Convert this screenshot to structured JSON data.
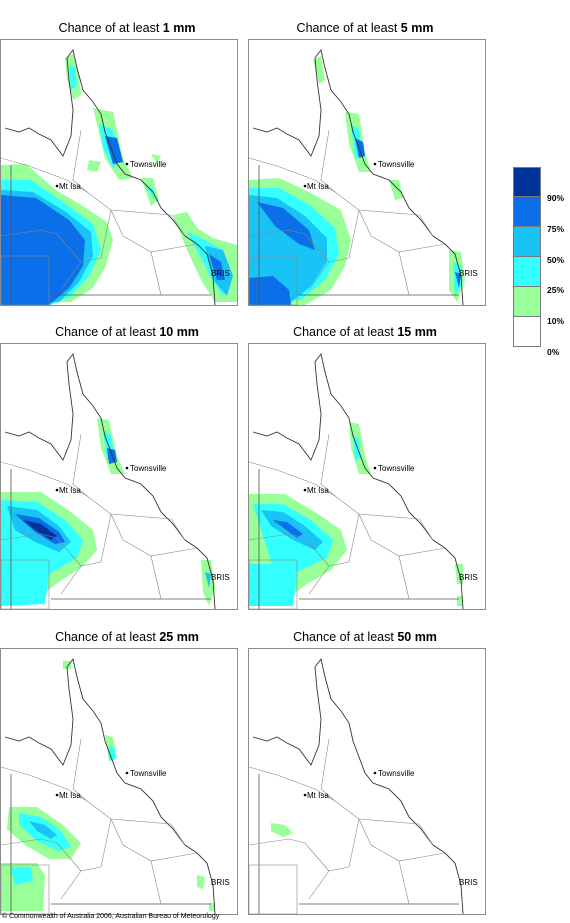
{
  "panels": [
    {
      "title_prefix": "Chance of at least ",
      "amount": "1 mm",
      "label_mtisa": "Mt Isa",
      "label_townsville": "Townsville",
      "label_bris": "BRIS"
    },
    {
      "title_prefix": "Chance of at least ",
      "amount": "5 mm",
      "label_mtisa": "Mt Isa",
      "label_townsville": "Townsville",
      "label_bris": "BRIS"
    },
    {
      "title_prefix": "Chance of at least ",
      "amount": "10 mm",
      "label_mtisa": "Mt Isa",
      "label_townsville": "Townsville",
      "label_bris": "BRIS"
    },
    {
      "title_prefix": "Chance of at least ",
      "amount": "15 mm",
      "label_mtisa": "Mt Isa",
      "label_townsville": "Townsville",
      "label_bris": "BRIS"
    },
    {
      "title_prefix": "Chance of at least ",
      "amount": "25 mm",
      "label_mtisa": "Mt Isa",
      "label_townsville": "Townsville",
      "label_bris": "BRIS"
    },
    {
      "title_prefix": "Chance of at least ",
      "amount": "50 mm",
      "label_mtisa": "Mt Isa",
      "label_townsville": "Townsville",
      "label_bris": "BRIS"
    }
  ],
  "legend": {
    "labels": [
      "90%",
      "75%",
      "50%",
      "25%",
      "10%",
      "0%"
    ],
    "colors": [
      "#003399",
      "#0a6fe8",
      "#19c3f5",
      "#33ffff",
      "#99ff99",
      "#ffffff"
    ]
  },
  "copyright": "© Commonwealth of Australia 2006, Australian Bureau of Meteorology"
}
